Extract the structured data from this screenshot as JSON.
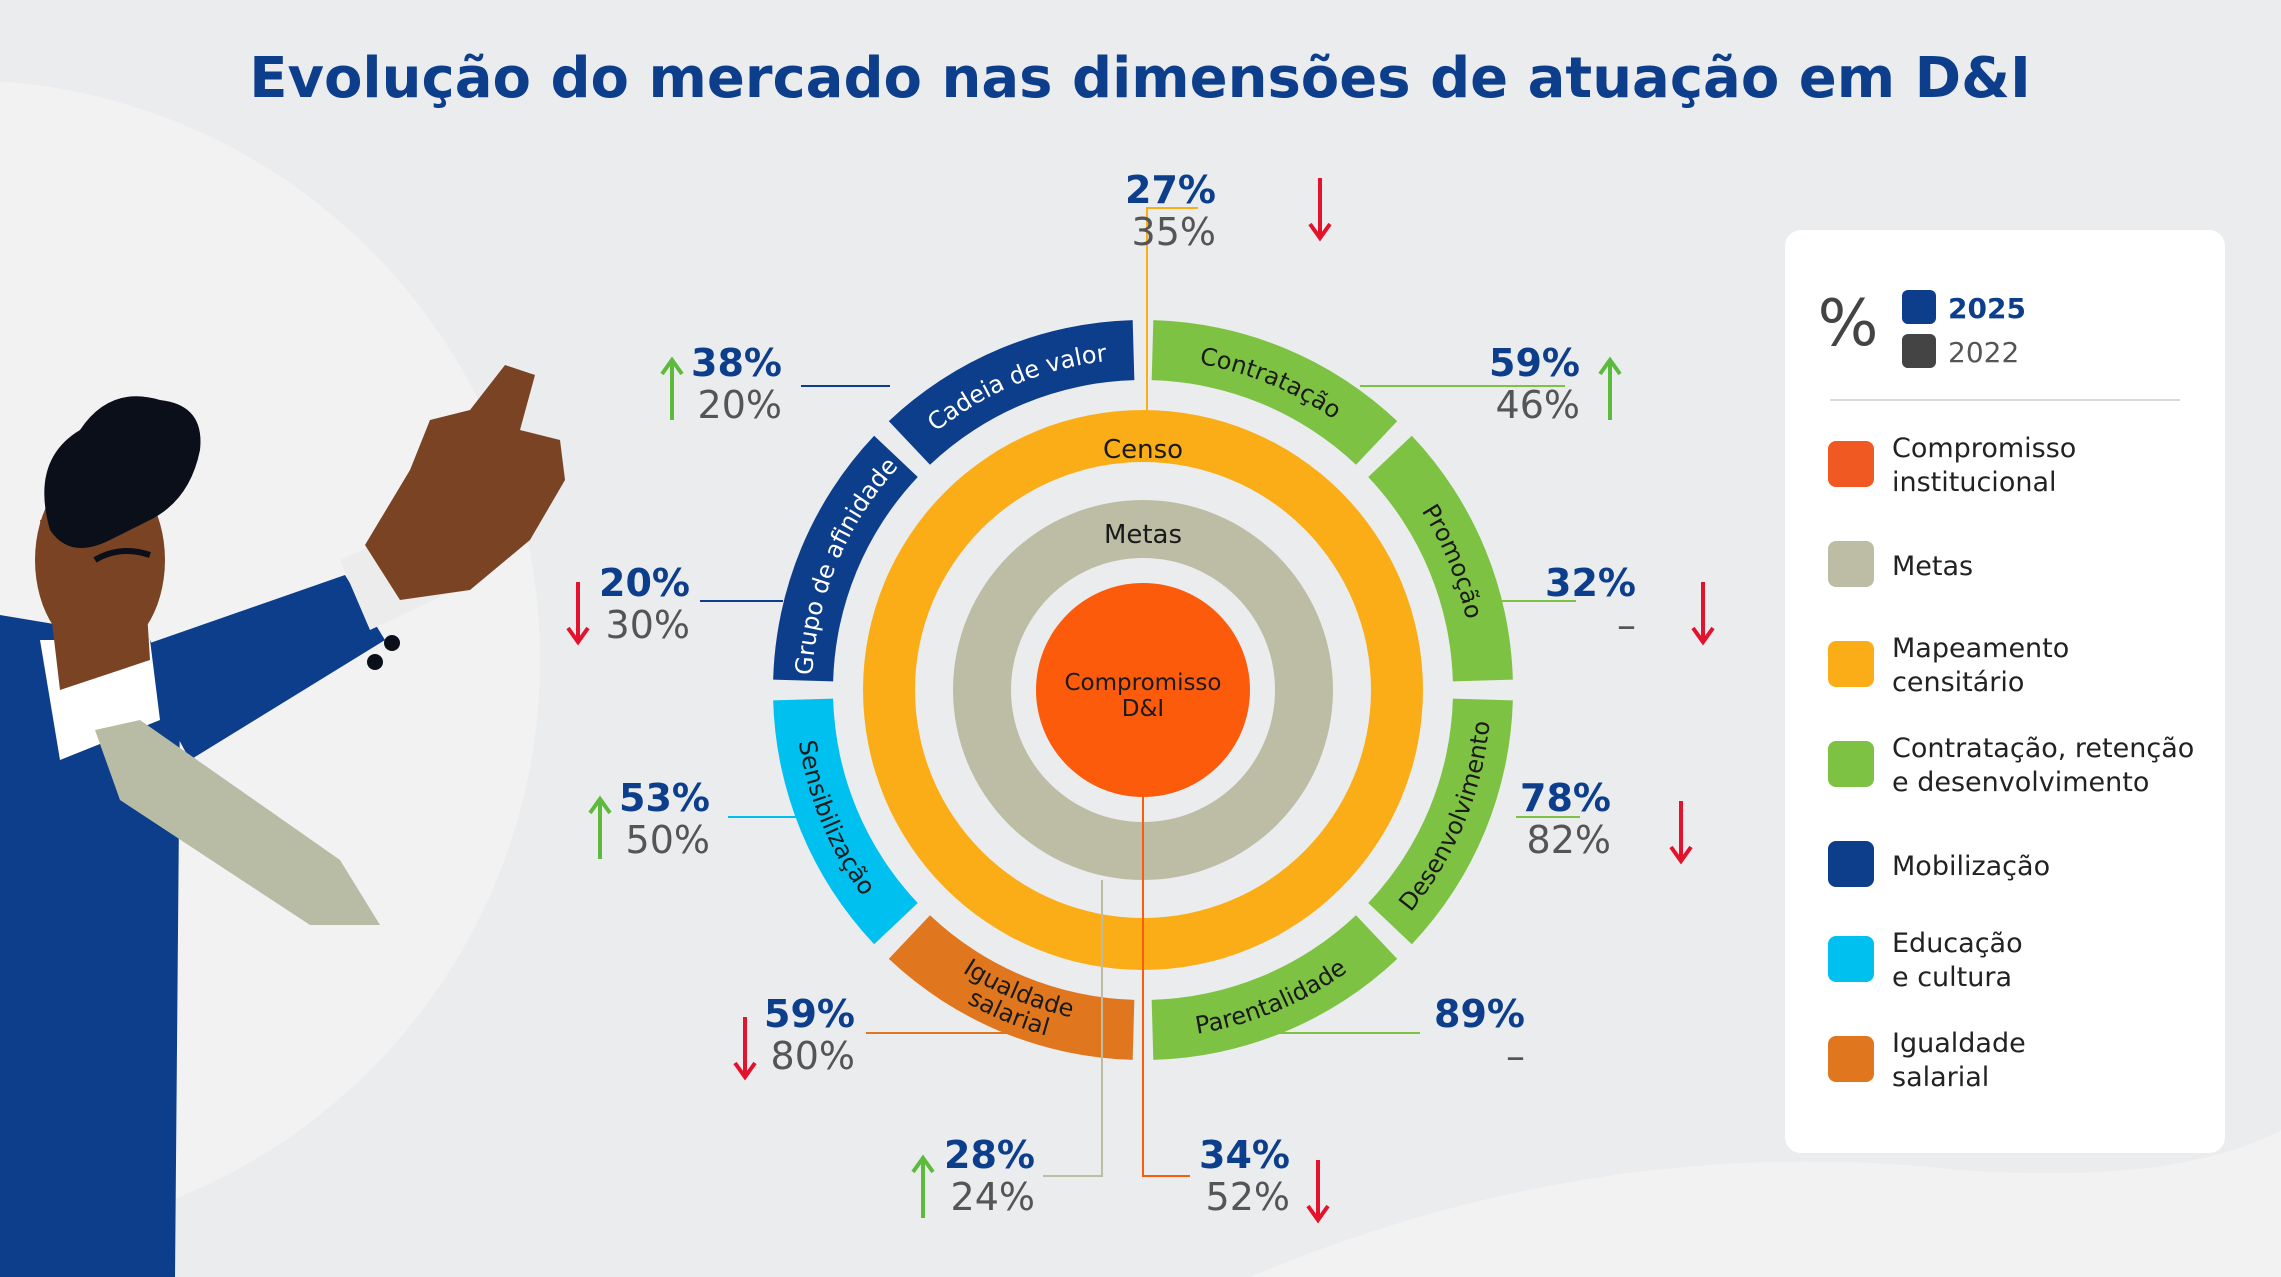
{
  "title": "Evolução do mercado nas dimensões de atuação em D&I",
  "legend": {
    "percent_symbol": "%",
    "year_current": "2025",
    "year_previous": "2022",
    "colors": {
      "2025": "#0c3e8c",
      "2022": "#444444"
    },
    "items": [
      {
        "label": [
          "Compromisso",
          "institucional"
        ],
        "color": "#f05a22"
      },
      {
        "label": [
          "Metas"
        ],
        "color": "#bdbda6"
      },
      {
        "label": [
          "Mapeamento",
          "censitário"
        ],
        "color": "#fbad17"
      },
      {
        "label": [
          "Contratação, retenção",
          "e desenvolvimento"
        ],
        "color": "#7dc242"
      },
      {
        "label": [
          "Mobilização"
        ],
        "color": "#0c3e8c"
      },
      {
        "label": [
          "Educação",
          "e cultura"
        ],
        "color": "#00c0f0"
      },
      {
        "label": [
          "Igualdade",
          "salarial"
        ],
        "color": "#e0771f"
      }
    ]
  },
  "chart_data": {
    "type": "sunburst",
    "title": "Evolução do mercado nas dimensões de atuação em D&I",
    "center": {
      "label": [
        "Compromisso",
        "D&I"
      ],
      "color": "#fb5b0a"
    },
    "inner_ring": {
      "label": "Metas",
      "color": "#bdbda6"
    },
    "middle_ring": {
      "label": "Censo",
      "color": "#fbad17"
    },
    "outer_segments": [
      {
        "name": "Contratação",
        "color": "#7dc242",
        "text_color": "#1a1a1a"
      },
      {
        "name": "Promoção",
        "color": "#7dc242",
        "text_color": "#1a1a1a"
      },
      {
        "name": "Desenvolvimento",
        "color": "#7dc242",
        "text_color": "#1a1a1a"
      },
      {
        "name": "Parentalidade",
        "color": "#7dc242",
        "text_color": "#1a1a1a"
      },
      {
        "name": "Igualdade salarial",
        "lines": [
          "Igualdade",
          "salarial"
        ],
        "color": "#e0771f",
        "text_color": "#1a1a1a"
      },
      {
        "name": "Sensibilização",
        "color": "#00c0f0",
        "text_color": "#1a1a1a"
      },
      {
        "name": "Grupo de afinidade",
        "color": "#0c3e8c",
        "text_color": "#ffffff"
      },
      {
        "name": "Cadeia de valor",
        "color": "#0c3e8c",
        "text_color": "#ffffff"
      }
    ],
    "series": [
      {
        "name": "2025",
        "color": "#0c3e8c"
      },
      {
        "name": "2022",
        "color": "#444444"
      }
    ],
    "values": [
      {
        "dimension": "Censo",
        "v2025": "27%",
        "v2022": "35%",
        "trend": "down"
      },
      {
        "dimension": "Contratação",
        "v2025": "59%",
        "v2022": "46%",
        "trend": "up"
      },
      {
        "dimension": "Promoção",
        "v2025": "32%",
        "v2022": "–",
        "trend": "down"
      },
      {
        "dimension": "Desenvolvimento",
        "v2025": "78%",
        "v2022": "82%",
        "trend": "down"
      },
      {
        "dimension": "Parentalidade",
        "v2025": "89%",
        "v2022": "–",
        "trend": "none"
      },
      {
        "dimension": "Compromisso D&I",
        "v2025": "34%",
        "v2022": "52%",
        "trend": "down"
      },
      {
        "dimension": "Metas",
        "v2025": "28%",
        "v2022": "24%",
        "trend": "up"
      },
      {
        "dimension": "Igualdade salarial",
        "v2025": "59%",
        "v2022": "80%",
        "trend": "down"
      },
      {
        "dimension": "Sensibilização",
        "v2025": "53%",
        "v2022": "50%",
        "trend": "up"
      },
      {
        "dimension": "Grupo de afinidade",
        "v2025": "20%",
        "v2022": "30%",
        "trend": "down"
      },
      {
        "dimension": "Cadeia de valor",
        "v2025": "38%",
        "v2022": "20%",
        "trend": "up"
      }
    ],
    "trend_colors": {
      "up": "#5cba3c",
      "down": "#e3122d"
    }
  }
}
